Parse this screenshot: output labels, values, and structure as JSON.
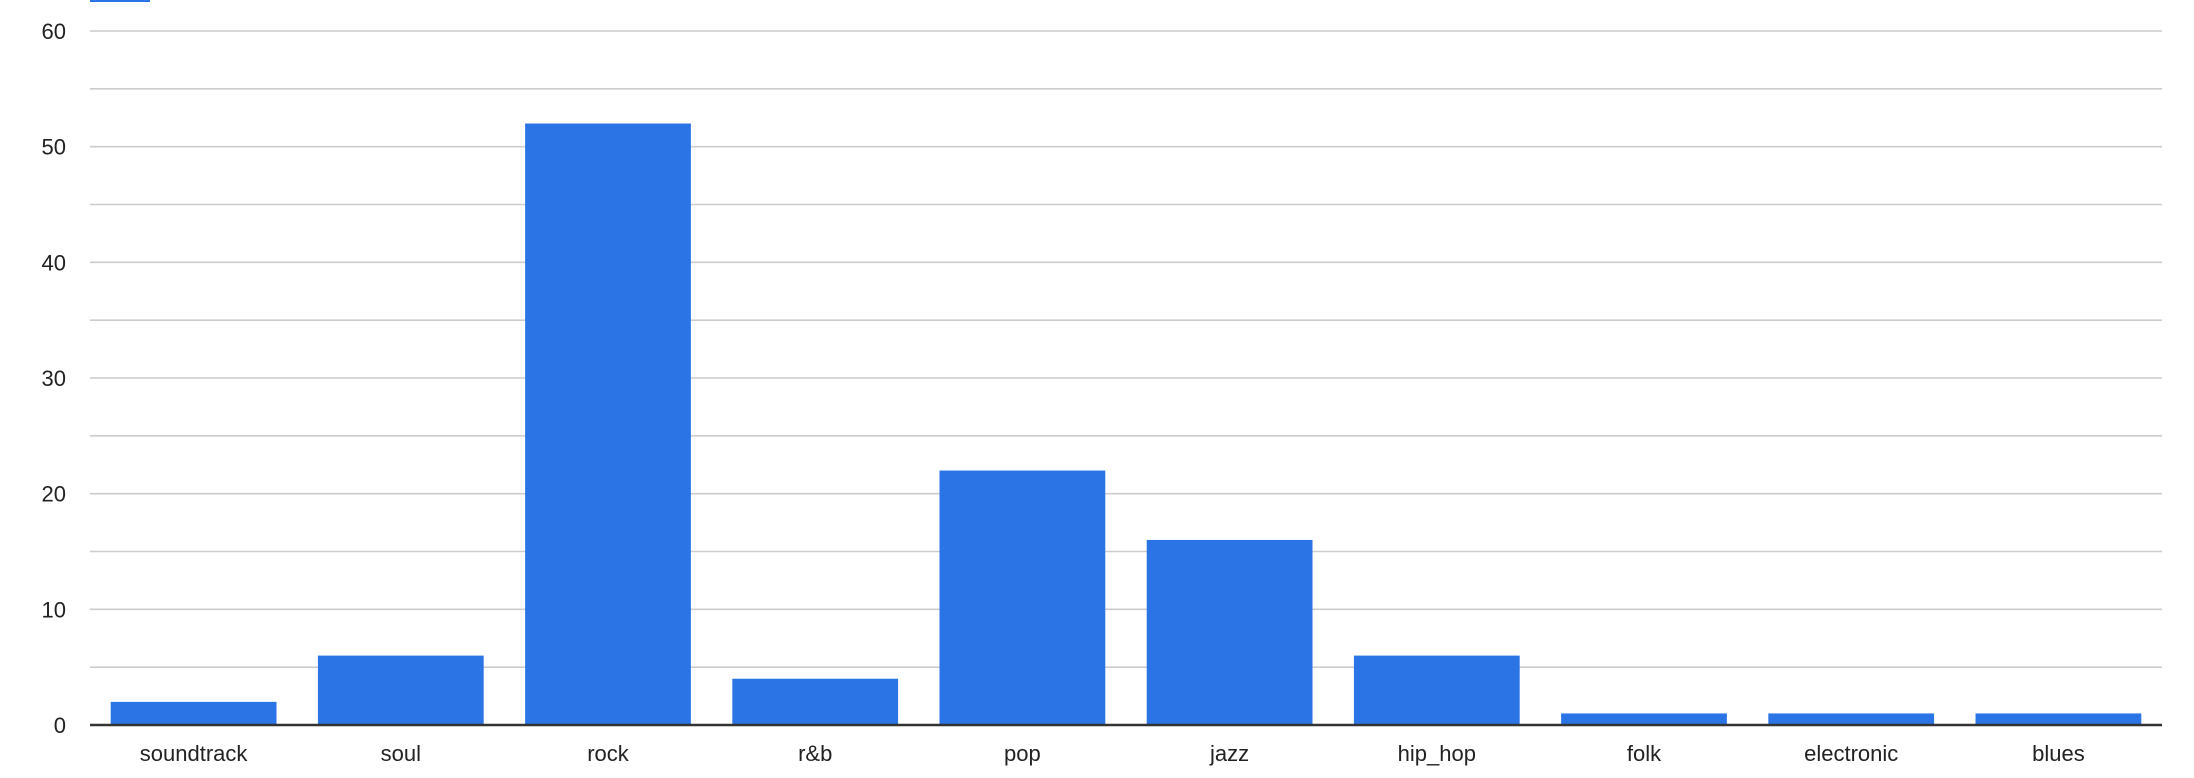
{
  "chart_data": {
    "type": "bar",
    "categories": [
      "soundtrack",
      "soul",
      "rock",
      "r&b",
      "pop",
      "jazz",
      "hip_hop",
      "folk",
      "electronic",
      "blues"
    ],
    "series": [
      {
        "values": [
          2,
          6,
          52,
          4,
          22,
          16,
          6,
          1,
          1,
          1
        ]
      }
    ],
    "ylim": [
      0,
      60
    ],
    "yticks": [
      0,
      10,
      20,
      30,
      40,
      50,
      60
    ],
    "minor_gridlines_every": 5,
    "grid": true,
    "legend": "top-left",
    "xlabel": "",
    "ylabel": "",
    "title": ""
  },
  "colors": {
    "bar": "#2a74e6",
    "gridline": "#cccccc",
    "axis": "#333333",
    "text": "#222222"
  }
}
